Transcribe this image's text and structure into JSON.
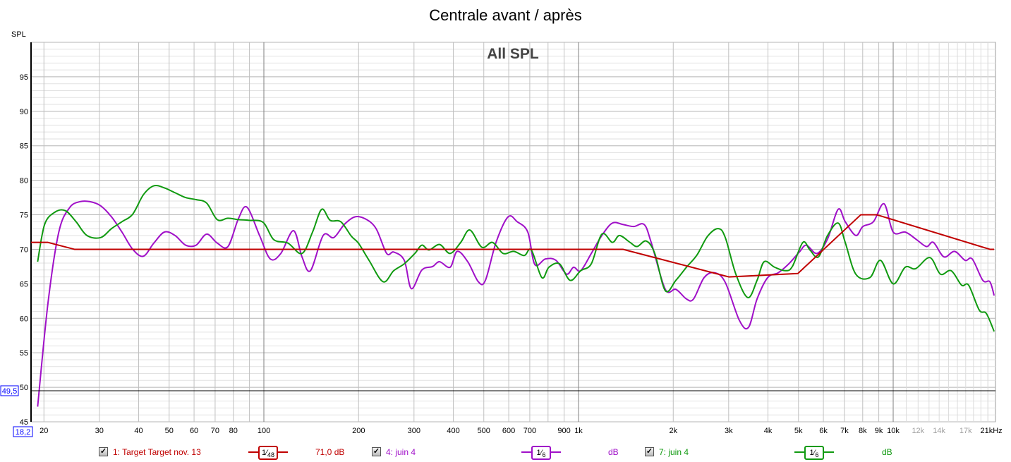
{
  "title": "Centrale avant / après",
  "colors": {
    "target": "#c00000",
    "juin4_purple": "#a010c8",
    "juin4_green": "#109a10",
    "grid": "#c8c8c8",
    "grid_major": "#808080",
    "cursor": "#0000ff"
  },
  "chart_data": {
    "type": "line",
    "title": "Centrale avant / après",
    "subtitle": "All SPL",
    "ylabel": "SPL",
    "xunit": "kHz",
    "xscale": "log",
    "xlim": [
      18.2,
      20930
    ],
    "ylim": [
      45,
      100
    ],
    "grid": true,
    "yticks": [
      45,
      50,
      55,
      60,
      65,
      70,
      75,
      80,
      85,
      90,
      95
    ],
    "xticks": [
      {
        "f": 20,
        "label": "20"
      },
      {
        "f": 30,
        "label": "30"
      },
      {
        "f": 40,
        "label": "40"
      },
      {
        "f": 50,
        "label": "50"
      },
      {
        "f": 60,
        "label": "60"
      },
      {
        "f": 70,
        "label": "70"
      },
      {
        "f": 80,
        "label": "80"
      },
      {
        "f": 100,
        "label": "100"
      },
      {
        "f": 200,
        "label": "200"
      },
      {
        "f": 300,
        "label": "300"
      },
      {
        "f": 400,
        "label": "400"
      },
      {
        "f": 500,
        "label": "500"
      },
      {
        "f": 600,
        "label": "600"
      },
      {
        "f": 700,
        "label": "700"
      },
      {
        "f": 900,
        "label": "900"
      },
      {
        "f": 1000,
        "label": "1k"
      },
      {
        "f": 2000,
        "label": "2k"
      },
      {
        "f": 3000,
        "label": "3k"
      },
      {
        "f": 4000,
        "label": "4k"
      },
      {
        "f": 5000,
        "label": "5k"
      },
      {
        "f": 6000,
        "label": "6k"
      },
      {
        "f": 7000,
        "label": "7k"
      },
      {
        "f": 8000,
        "label": "8k"
      },
      {
        "f": 9000,
        "label": "9k"
      },
      {
        "f": 10000,
        "label": "10k"
      },
      {
        "f": 12000,
        "label": "12k",
        "muted": true
      },
      {
        "f": 14000,
        "label": "14k",
        "muted": true
      },
      {
        "f": 17000,
        "label": "17k",
        "muted": true
      },
      {
        "f": 20500,
        "label": "21kHz"
      }
    ],
    "cursor": {
      "x_label": "18,2",
      "y_label": "49,5",
      "y": 49.5
    },
    "series": [
      {
        "name": "1: Target Target nov. 13",
        "color": "#c00000",
        "smooth": false,
        "x": [
          18.2,
          20.6,
          25,
          1384,
          3003,
          4981,
          7885,
          8880,
          20290,
          20930
        ],
        "y": [
          71,
          71,
          70,
          70,
          66,
          66.5,
          75,
          75,
          70,
          70
        ]
      },
      {
        "name": "4: juin 4",
        "color": "#a010c8",
        "smooth": true,
        "x": [
          19.1,
          20.6,
          22.3,
          24.1,
          26.0,
          28.1,
          30.3,
          32.8,
          35.4,
          38.3,
          41.4,
          44.7,
          48.3,
          52.2,
          56.4,
          60.9,
          65.8,
          71.1,
          76.9,
          83.1,
          88.4,
          96.9,
          104.8,
          113.2,
          124.2,
          132.2,
          140.6,
          154.3,
          166.7,
          180.1,
          194.6,
          210.3,
          227.3,
          245.6,
          258.6,
          279.4,
          294.2,
          317.8,
          343.5,
          361.7,
          390.8,
          411.5,
          444.6,
          480.4,
          505.8,
          546.8,
          596.9,
          638.4,
          689.8,
          726.1,
          784.6,
          847.8,
          916,
          964.5,
          1016,
          1098,
          1186,
          1281,
          1384,
          1496,
          1616,
          1702,
          1887,
          2039,
          2203,
          2320,
          2507,
          2709,
          2927,
          3245,
          3470,
          3693,
          3991,
          4311,
          4660,
          5032,
          5299,
          5726,
          6186,
          6687,
          7040,
          7606,
          8008,
          8654,
          9352,
          10000,
          10920,
          11790,
          12750,
          13420,
          14500,
          15670,
          16930,
          17830,
          19270,
          20290,
          20930
        ],
        "y": [
          47.2,
          62.2,
          72.5,
          76,
          76.9,
          76.9,
          76.3,
          74.7,
          72.5,
          70,
          69,
          70.9,
          72.5,
          72,
          70.6,
          70.6,
          72.2,
          70.9,
          70.4,
          74.5,
          76.1,
          72,
          68.6,
          69.4,
          72.7,
          68.9,
          66.9,
          72,
          71.7,
          73.6,
          74.7,
          74.4,
          73,
          69.4,
          69.6,
          68.4,
          64.3,
          67,
          67.5,
          68.2,
          67.4,
          69.7,
          68.2,
          65.3,
          65.5,
          71,
          74.7,
          74,
          72.5,
          67.8,
          68.6,
          68.4,
          66.4,
          67.4,
          66.9,
          69.4,
          72,
          73.8,
          73.6,
          73.3,
          73.6,
          71,
          64.2,
          64.2,
          62.8,
          62.8,
          65.9,
          66.6,
          65.2,
          59.7,
          58.7,
          62.8,
          65.9,
          66.6,
          67.9,
          69.6,
          70.6,
          69.4,
          71.5,
          75.8,
          74,
          72,
          73.3,
          74,
          76.6,
          72.5,
          72.5,
          71.5,
          70.4,
          71,
          68.9,
          69.7,
          68.4,
          68.6,
          65.5,
          65.3,
          63.3
        ]
      },
      {
        "name": "7: juin 4",
        "color": "#109a10",
        "smooth": true,
        "x": [
          19.1,
          20.1,
          21.7,
          23.4,
          25.3,
          27.4,
          30.3,
          32.8,
          35.4,
          38.3,
          41.4,
          44.7,
          48.3,
          52.2,
          56.4,
          60.9,
          65.8,
          71.1,
          76.9,
          83.1,
          89.7,
          99.5,
          107.5,
          119.2,
          132.2,
          142.8,
          152.7,
          162.4,
          175.5,
          189.7,
          199.7,
          215.9,
          239.3,
          258.6,
          279.4,
          301.9,
          317.8,
          334.7,
          361.7,
          390.8,
          422.3,
          451.5,
          492.9,
          532.8,
          575.7,
          622.1,
          672.2,
          707.8,
          764.6,
          805,
          870,
          940,
          1016,
          1098,
          1186,
          1281,
          1349,
          1458,
          1535,
          1641,
          1747,
          1887,
          2039,
          2203,
          2381,
          2572,
          2780,
          2927,
          3162,
          3452,
          3693,
          3889,
          4202,
          4540,
          4780,
          5164,
          5437,
          5786,
          6186,
          6687,
          7040,
          7606,
          8433,
          9113,
          10000,
          10920,
          11790,
          13080,
          14130,
          15280,
          16500,
          17370,
          18770,
          19770,
          20930
        ],
        "y": [
          68.2,
          73.6,
          75.4,
          75.6,
          74,
          72,
          71.7,
          73,
          74,
          75.1,
          77.9,
          79.2,
          78.9,
          78.2,
          77.5,
          77.2,
          76.7,
          74.3,
          74.5,
          74.3,
          74.2,
          73.9,
          71.4,
          70.9,
          69.4,
          72.5,
          75.8,
          74.2,
          74,
          71.9,
          70.9,
          68.4,
          65.3,
          66.9,
          67.9,
          69.4,
          70.6,
          69.9,
          70.7,
          69.4,
          71,
          72.8,
          70.3,
          71,
          69.4,
          69.7,
          69.1,
          69.9,
          65.9,
          67.4,
          67.9,
          65.5,
          66.9,
          67.9,
          72.2,
          71,
          72,
          71,
          70.4,
          71.2,
          69.4,
          64,
          65.5,
          67.4,
          69.2,
          71.9,
          73,
          71.7,
          66.4,
          63,
          65.5,
          68.2,
          67.4,
          66.9,
          67.5,
          71,
          69.9,
          68.9,
          72,
          73.8,
          71,
          66.4,
          65.9,
          68.4,
          65,
          67.4,
          67.2,
          68.8,
          66.4,
          66.9,
          64.8,
          64.8,
          61.2,
          60.7,
          58.1
        ]
      }
    ]
  },
  "legend": [
    {
      "label": "1: Target Target nov. 13",
      "checked": "✓",
      "smoothing_num": "1",
      "smoothing_den": "48",
      "value": "71,0 dB"
    },
    {
      "label": "4: juin 4",
      "checked": "✓",
      "smoothing_num": "1",
      "smoothing_den": "6",
      "value": "dB"
    },
    {
      "label": "7: juin 4",
      "checked": "✓",
      "smoothing_num": "1",
      "smoothing_den": "6",
      "value": "dB"
    }
  ]
}
